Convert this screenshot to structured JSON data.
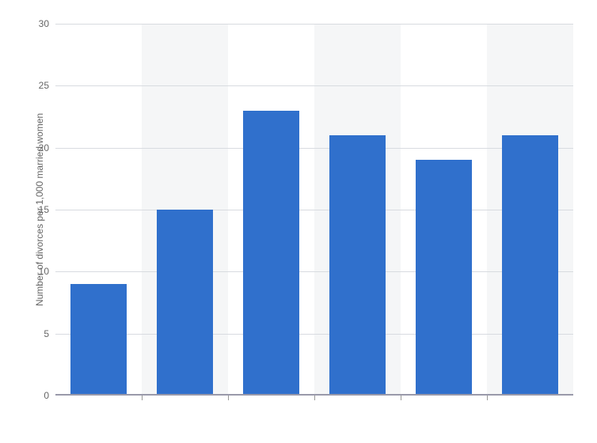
{
  "chart": {
    "type": "bar",
    "ylabel": "Number of divorces per 1,000 married women",
    "label_fontsize": 12,
    "label_color": "#666666",
    "values": [
      9,
      15,
      23,
      21,
      19,
      21
    ],
    "bar_color": "#3070cc",
    "bar_width": 0.66,
    "ylim": [
      0,
      30
    ],
    "ytick_step": 5,
    "yticks": [
      0,
      5,
      10,
      15,
      20,
      25,
      30
    ],
    "background_color": "#ffffff",
    "band_color_alt": "#f5f6f7",
    "grid_color": "#d8dbe0",
    "baseline_color": "#9999aa",
    "tick_label_color": "#666666",
    "tick_label_fontsize": 12
  }
}
